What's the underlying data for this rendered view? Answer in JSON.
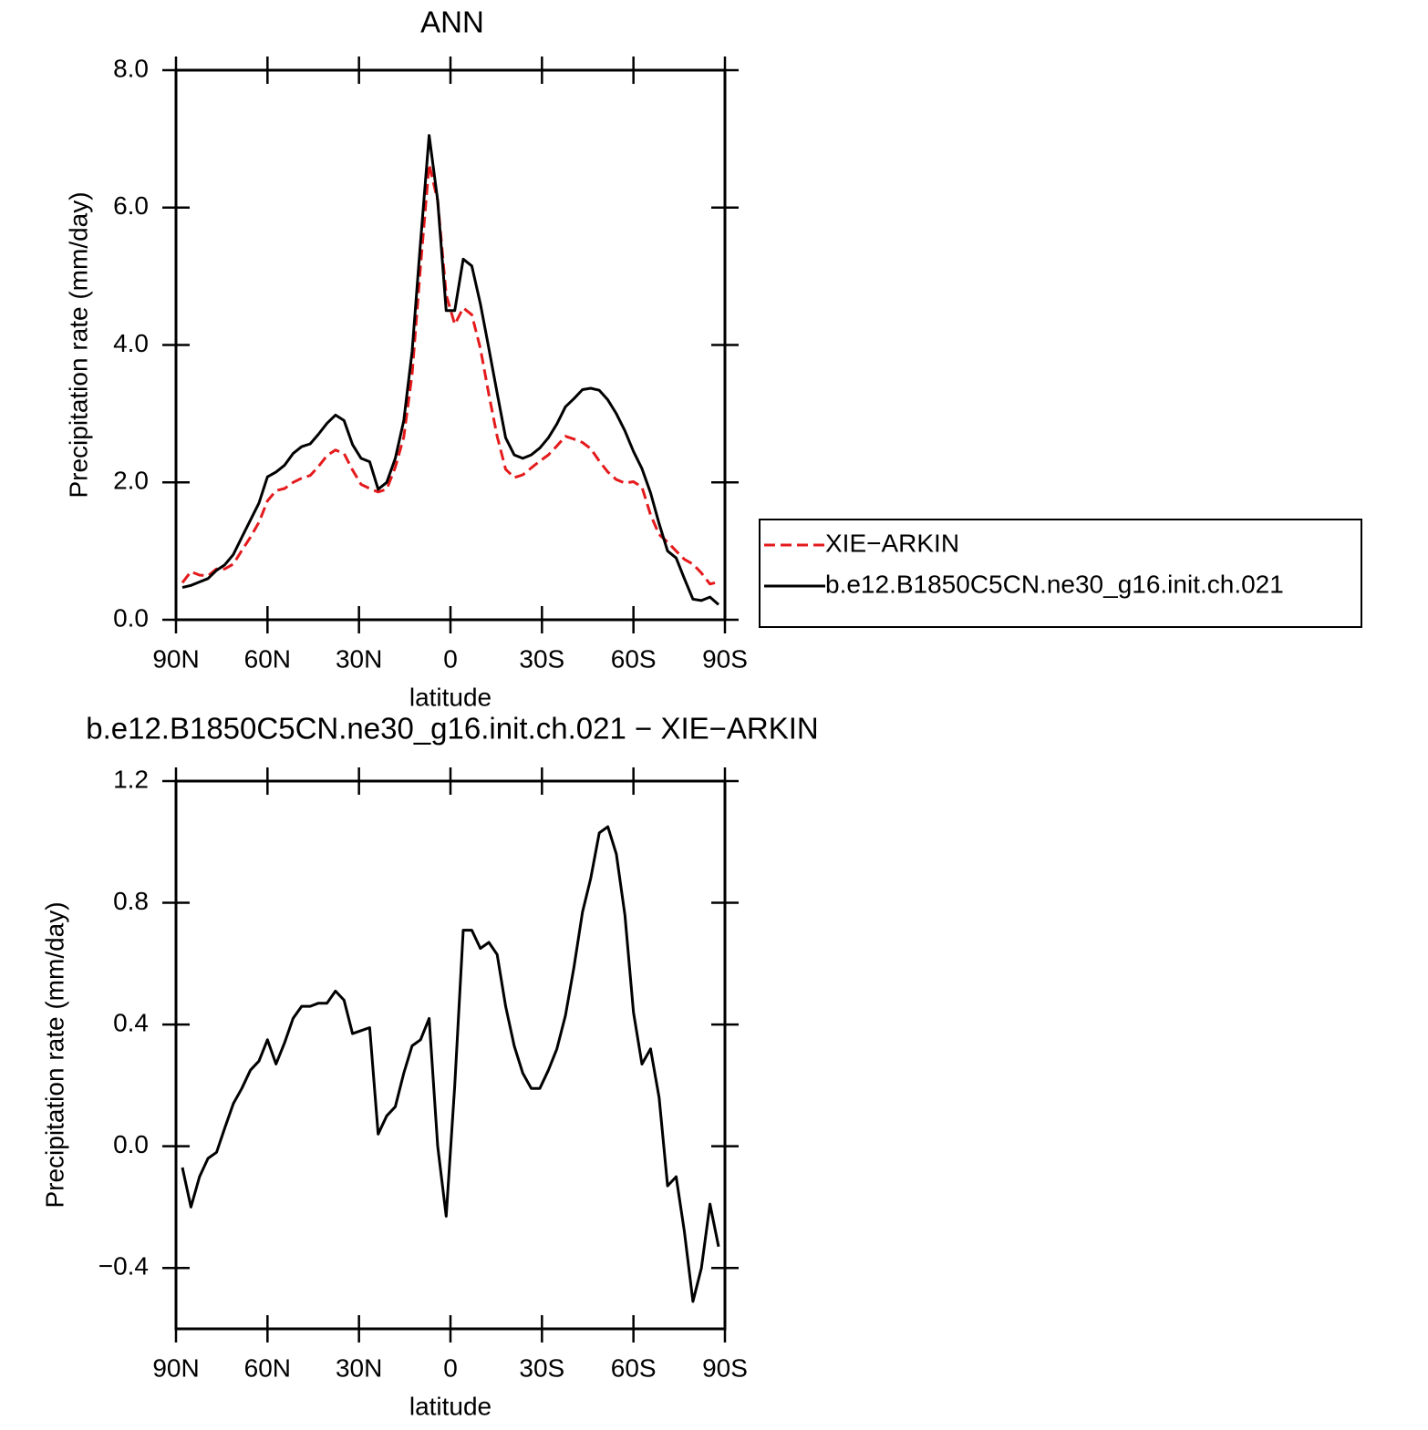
{
  "chart_data": [
    {
      "type": "line",
      "title": "ANN",
      "ylabel": "Precipitation rate (mm/day)",
      "xlabel": "latitude",
      "xlim": [
        90,
        -90
      ],
      "xticks": [
        {
          "value": 90,
          "label": "90N"
        },
        {
          "value": 60,
          "label": "60N"
        },
        {
          "value": 30,
          "label": "30N"
        },
        0,
        {
          "value": -30,
          "label": "30S"
        },
        {
          "value": -60,
          "label": "60S"
        },
        {
          "value": -90,
          "label": "90S"
        }
      ],
      "ylim": [
        0,
        8
      ],
      "yticks": [
        {
          "value": 0,
          "label": "0.0"
        },
        {
          "value": 2,
          "label": "2.0"
        },
        {
          "value": 4,
          "label": "4.0"
        },
        {
          "value": 6,
          "label": "6.0"
        },
        {
          "value": 8,
          "label": "8.0"
        }
      ],
      "legend": "right",
      "x": [
        87.9,
        85.1,
        82.3,
        79.5,
        76.7,
        74.0,
        71.2,
        68.4,
        65.6,
        62.8,
        60.0,
        57.2,
        54.4,
        51.6,
        48.8,
        46.0,
        43.3,
        40.5,
        37.7,
        34.9,
        32.1,
        29.3,
        26.5,
        23.7,
        20.9,
        18.1,
        15.3,
        12.6,
        9.8,
        7.0,
        4.2,
        1.4,
        -1.4,
        -4.2,
        -7.0,
        -9.8,
        -12.6,
        -15.3,
        -18.1,
        -20.9,
        -23.7,
        -26.5,
        -29.3,
        -32.1,
        -34.9,
        -37.7,
        -40.5,
        -43.3,
        -46.0,
        -48.8,
        -51.6,
        -54.4,
        -57.2,
        -60.0,
        -62.8,
        -65.6,
        -68.4,
        -71.2,
        -74.0,
        -76.7,
        -79.5,
        -82.3,
        -85.1,
        -87.9
      ],
      "series": [
        {
          "name": "XIE−ARKIN",
          "color": "#e41a1c",
          "style": "dashed",
          "values": [
            0.54,
            0.7,
            0.65,
            0.64,
            0.74,
            0.74,
            0.81,
            1.01,
            1.2,
            1.42,
            1.73,
            1.88,
            1.91,
            2.0,
            2.06,
            2.1,
            2.23,
            2.39,
            2.47,
            2.42,
            2.18,
            1.97,
            1.91,
            1.86,
            1.9,
            2.22,
            2.66,
            3.57,
            5.15,
            6.63,
            6.1,
            4.73,
            4.3,
            4.54,
            4.44,
            3.95,
            3.28,
            2.67,
            2.19,
            2.07,
            2.11,
            2.21,
            2.31,
            2.4,
            2.53,
            2.67,
            2.63,
            2.58,
            2.49,
            2.31,
            2.15,
            2.04,
            1.99,
            2.01,
            1.93,
            1.53,
            1.24,
            1.13,
            1.0,
            0.88,
            0.81,
            0.68,
            0.52,
            0.55
          ]
        },
        {
          "name": "b.e12.B1850C5CN.ne30_g16.init.ch.021",
          "color": "#000000",
          "style": "solid",
          "values": [
            0.47,
            0.5,
            0.55,
            0.6,
            0.72,
            0.8,
            0.95,
            1.2,
            1.45,
            1.7,
            2.08,
            2.15,
            2.25,
            2.42,
            2.52,
            2.56,
            2.7,
            2.86,
            2.98,
            2.9,
            2.55,
            2.35,
            2.3,
            1.9,
            2.0,
            2.35,
            2.9,
            3.9,
            5.5,
            7.05,
            6.1,
            4.5,
            4.5,
            5.25,
            5.15,
            4.6,
            3.95,
            3.3,
            2.65,
            2.4,
            2.35,
            2.4,
            2.5,
            2.65,
            2.85,
            3.1,
            3.22,
            3.35,
            3.37,
            3.34,
            3.2,
            3.0,
            2.75,
            2.45,
            2.2,
            1.85,
            1.4,
            1.0,
            0.9,
            0.6,
            0.3,
            0.28,
            0.33,
            0.22
          ]
        }
      ]
    },
    {
      "type": "line",
      "title": "b.e12.B1850C5CN.ne30_g16.init.ch.021 − XIE−ARKIN",
      "ylabel": "Precipitation rate (mm/day)",
      "xlabel": "latitude",
      "xlim": [
        90,
        -90
      ],
      "xticks": [
        {
          "value": 90,
          "label": "90N"
        },
        {
          "value": 60,
          "label": "60N"
        },
        {
          "value": 30,
          "label": "30N"
        },
        0,
        {
          "value": -30,
          "label": "30S"
        },
        {
          "value": -60,
          "label": "60S"
        },
        {
          "value": -90,
          "label": "90S"
        }
      ],
      "ylim": [
        -0.6,
        1.2
      ],
      "yticks": [
        {
          "value": -0.4,
          "label": "−0.4"
        },
        {
          "value": 0,
          "label": "0.0"
        },
        0.4,
        0.8,
        1.2
      ],
      "x": [
        87.9,
        85.1,
        82.3,
        79.5,
        76.7,
        74.0,
        71.2,
        68.4,
        65.6,
        62.8,
        60.0,
        57.2,
        54.4,
        51.6,
        48.8,
        46.0,
        43.3,
        40.5,
        37.7,
        34.9,
        32.1,
        29.3,
        26.5,
        23.7,
        20.9,
        18.1,
        15.3,
        12.6,
        9.8,
        7.0,
        4.2,
        1.4,
        -1.4,
        -4.2,
        -7.0,
        -9.8,
        -12.6,
        -15.3,
        -18.1,
        -20.9,
        -23.7,
        -26.5,
        -29.3,
        -32.1,
        -34.9,
        -37.7,
        -40.5,
        -43.3,
        -46.0,
        -48.8,
        -51.6,
        -54.4,
        -57.2,
        -60.0,
        -62.8,
        -65.6,
        -68.4,
        -71.2,
        -74.0,
        -76.7,
        -79.5,
        -82.3,
        -85.1,
        -87.9
      ],
      "series": [
        {
          "color": "#000000",
          "style": "solid",
          "values": [
            -0.07,
            -0.2,
            -0.1,
            -0.04,
            -0.02,
            0.06,
            0.14,
            0.19,
            0.25,
            0.28,
            0.35,
            0.27,
            0.34,
            0.42,
            0.46,
            0.46,
            0.47,
            0.47,
            0.51,
            0.48,
            0.37,
            0.38,
            0.39,
            0.04,
            0.1,
            0.13,
            0.24,
            0.33,
            0.35,
            0.42,
            0.0,
            -0.23,
            0.2,
            0.71,
            0.71,
            0.65,
            0.67,
            0.63,
            0.46,
            0.33,
            0.24,
            0.19,
            0.19,
            0.25,
            0.32,
            0.43,
            0.59,
            0.77,
            0.88,
            1.03,
            1.05,
            0.96,
            0.76,
            0.44,
            0.27,
            0.32,
            0.16,
            -0.13,
            -0.1,
            -0.28,
            -0.51,
            -0.4,
            -0.19,
            -0.33
          ]
        }
      ]
    }
  ]
}
